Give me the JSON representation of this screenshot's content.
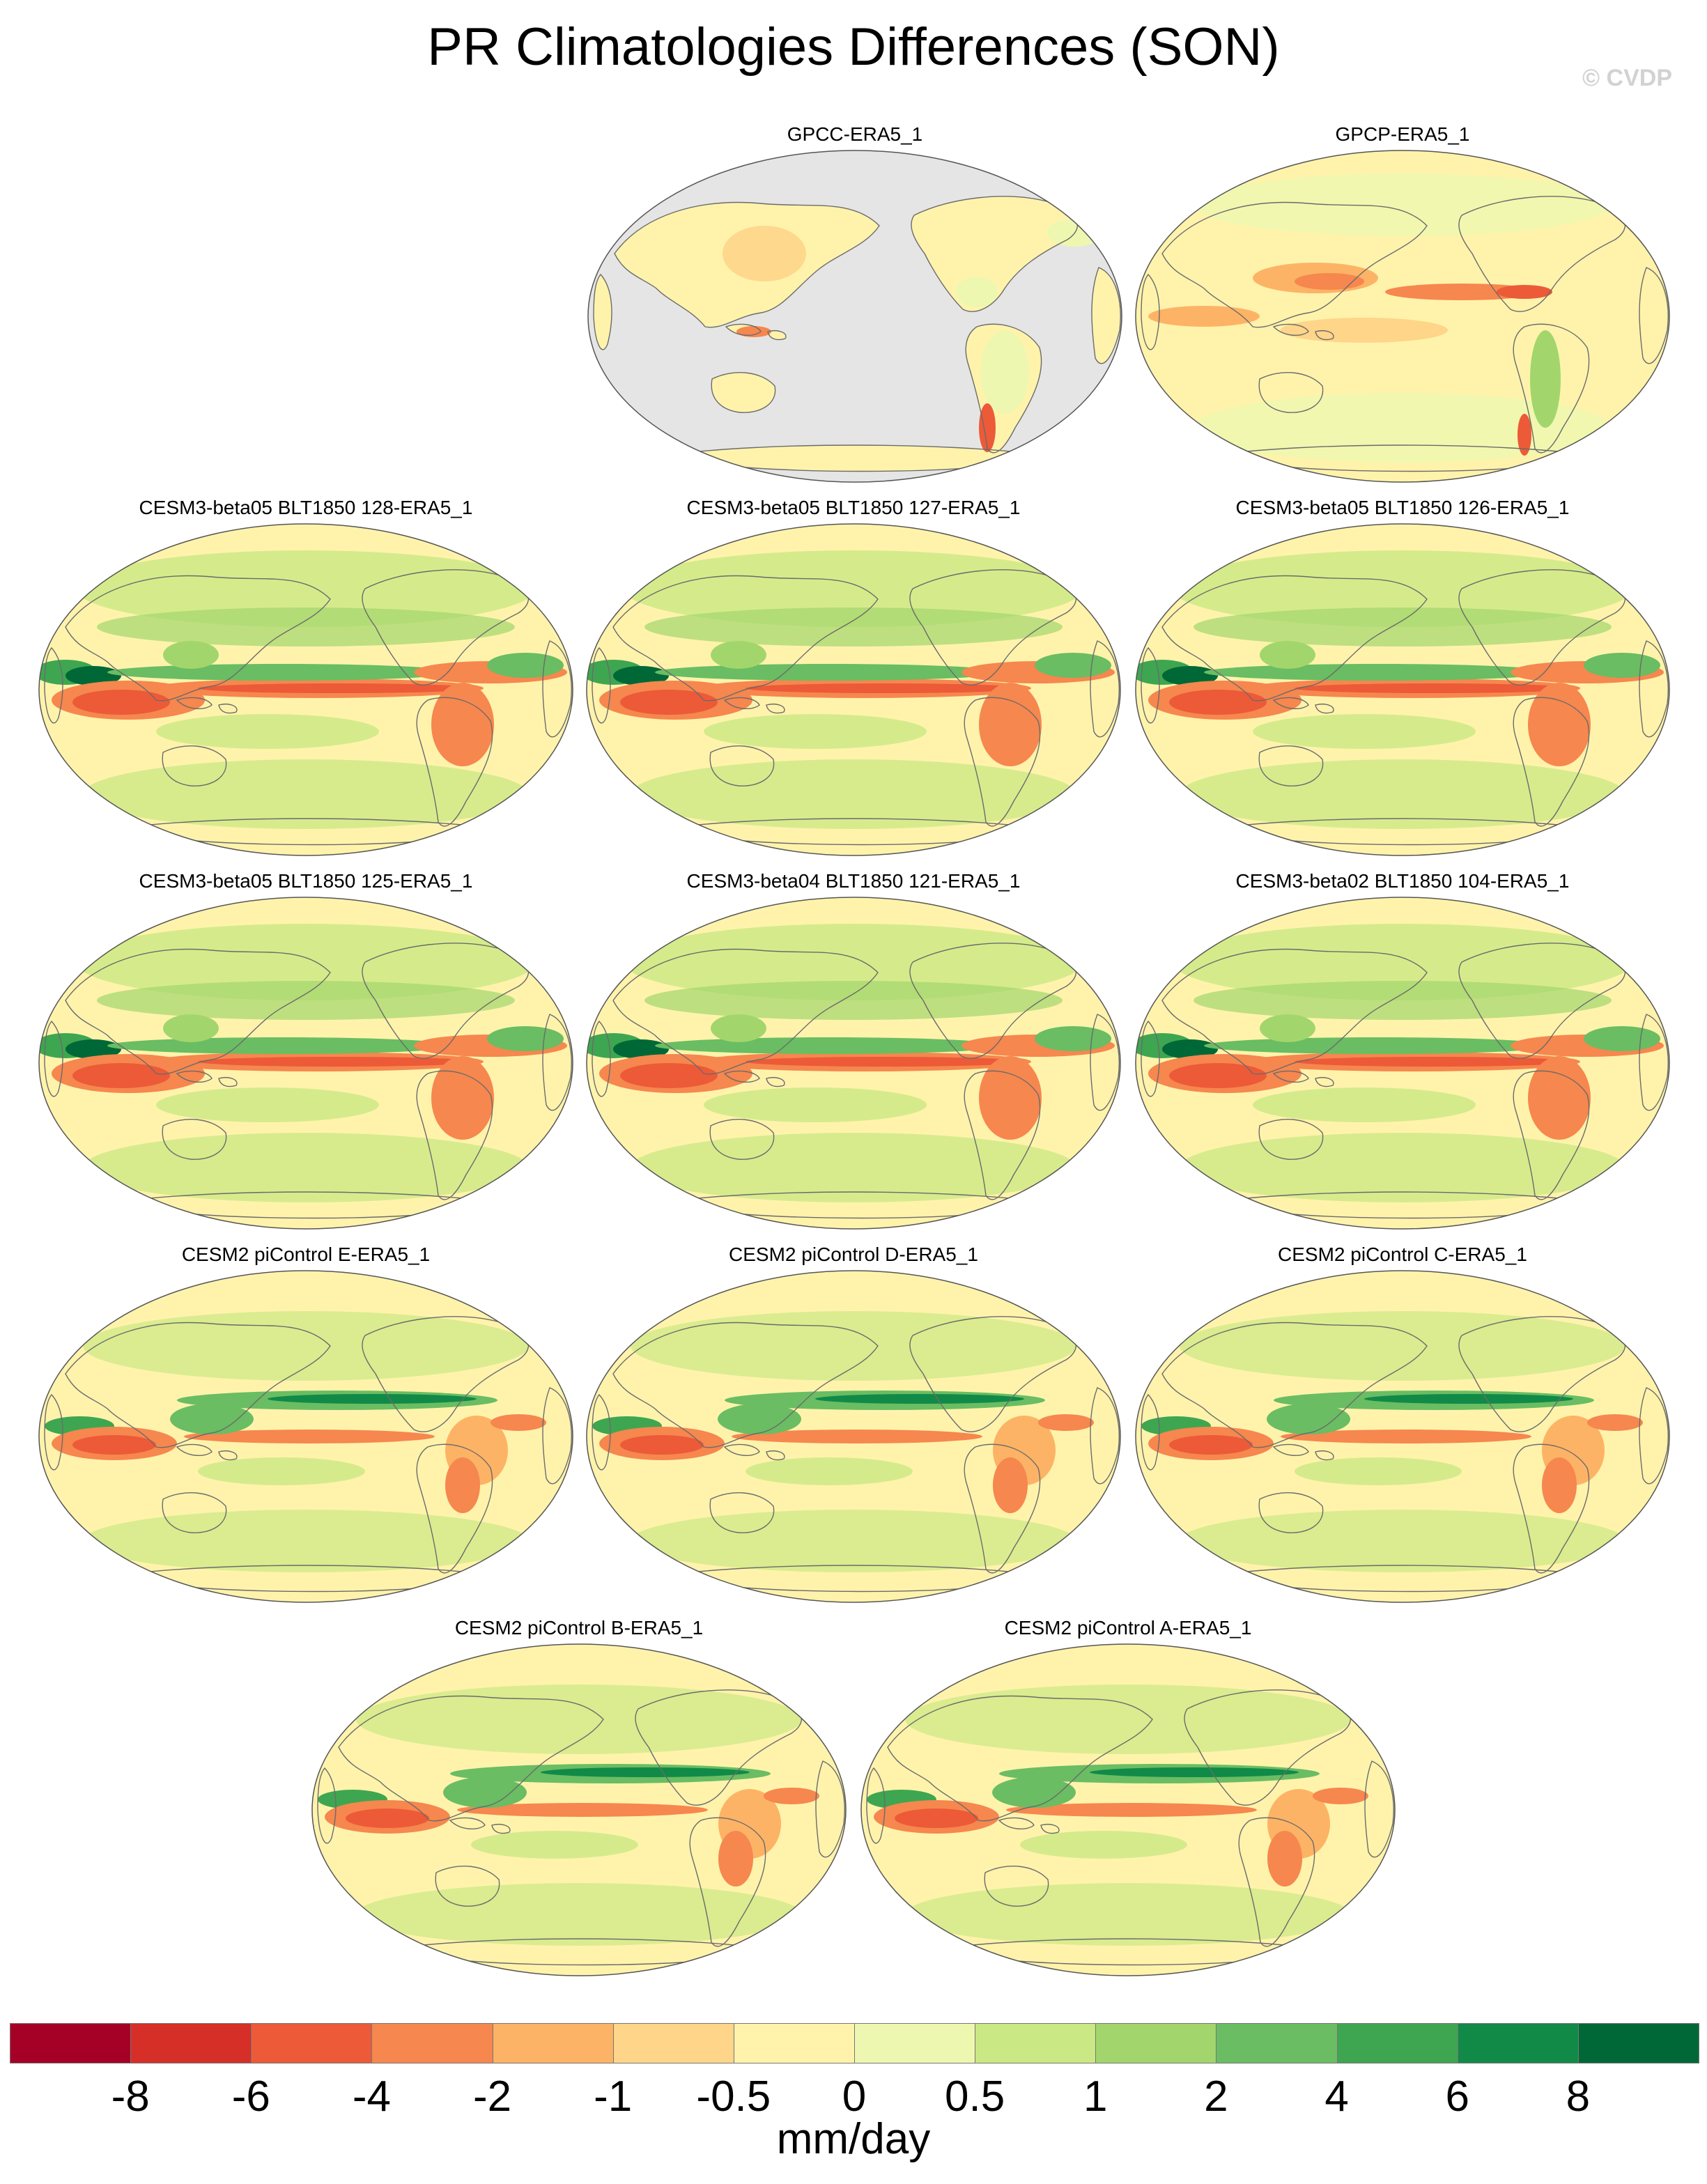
{
  "figure": {
    "title": "PR Climatologies Differences (SON)",
    "watermark": "© CVDP"
  },
  "colorbar": {
    "units": "mm/day",
    "colors": [
      "#a50026",
      "#d62f27",
      "#ec5a38",
      "#f6874e",
      "#fdb365",
      "#fed589",
      "#fff3ac",
      "#eef7b0",
      "#cae883",
      "#a2d66c",
      "#6abd62",
      "#3ea650",
      "#118a48",
      "#006837"
    ],
    "tick_labels": [
      "-8",
      "-6",
      "-4",
      "-2",
      "-1",
      "-0.5",
      "0",
      "0.5",
      "1",
      "2",
      "4",
      "6",
      "8"
    ]
  },
  "panels": [
    {
      "title": "GPCC-ERA5_1",
      "land_only": true,
      "pattern": "obs_land"
    },
    {
      "title": "GPCP-ERA5_1",
      "land_only": false,
      "pattern": "obs_ocean"
    },
    {
      "title": "CESM3-beta05 BLT1850 128-ERA5_1",
      "land_only": false,
      "pattern": "model_a"
    },
    {
      "title": "CESM3-beta05 BLT1850 127-ERA5_1",
      "land_only": false,
      "pattern": "model_a"
    },
    {
      "title": "CESM3-beta05 BLT1850 126-ERA5_1",
      "land_only": false,
      "pattern": "model_a"
    },
    {
      "title": "CESM3-beta05 BLT1850 125-ERA5_1",
      "land_only": false,
      "pattern": "model_a"
    },
    {
      "title": "CESM3-beta04 BLT1850 121-ERA5_1",
      "land_only": false,
      "pattern": "model_a"
    },
    {
      "title": "CESM3-beta02 BLT1850 104-ERA5_1",
      "land_only": false,
      "pattern": "model_a"
    },
    {
      "title": "CESM2 piControl E-ERA5_1",
      "land_only": false,
      "pattern": "model_b"
    },
    {
      "title": "CESM2 piControl D-ERA5_1",
      "land_only": false,
      "pattern": "model_b"
    },
    {
      "title": "CESM2 piControl C-ERA5_1",
      "land_only": false,
      "pattern": "model_b"
    },
    {
      "title": "CESM2 piControl B-ERA5_1",
      "land_only": false,
      "pattern": "model_b"
    },
    {
      "title": "CESM2 piControl A-ERA5_1",
      "land_only": false,
      "pattern": "model_b"
    }
  ]
}
